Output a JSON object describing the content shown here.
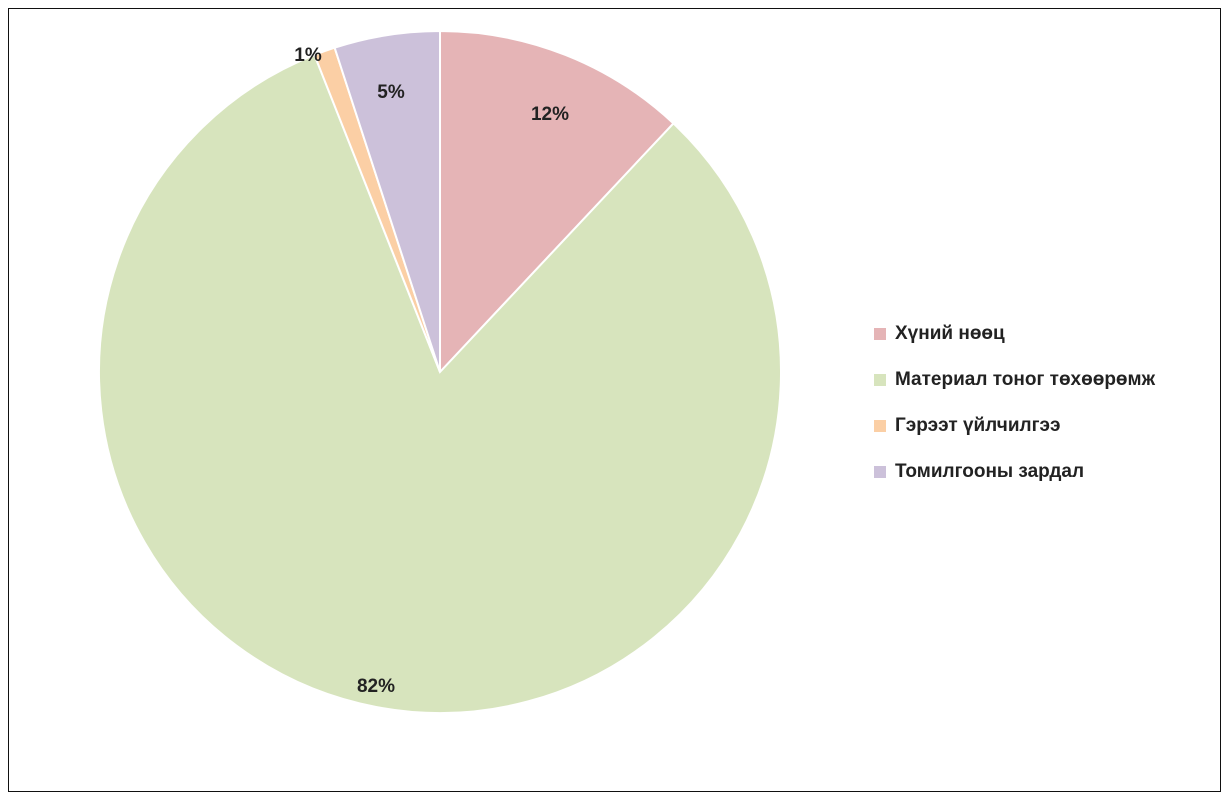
{
  "chart_data": {
    "type": "pie",
    "title": "",
    "start_angle_deg": 0,
    "direction": "clockwise",
    "legend_position": "right",
    "slices": [
      {
        "label": "Хүний нөөц",
        "value": 12,
        "display": "12%",
        "color": "#e5b4b6"
      },
      {
        "label": "Материал тоног төхөөрөмж",
        "value": 82,
        "display": "82%",
        "color": "#d7e4bd"
      },
      {
        "label": "Гэрээт үйлчилгээ",
        "value": 1,
        "display": "1%",
        "color": "#fbcfa5"
      },
      {
        "label": "Томилгооны зардал",
        "value": 5,
        "display": "5%",
        "color": "#ccc1da"
      }
    ]
  }
}
